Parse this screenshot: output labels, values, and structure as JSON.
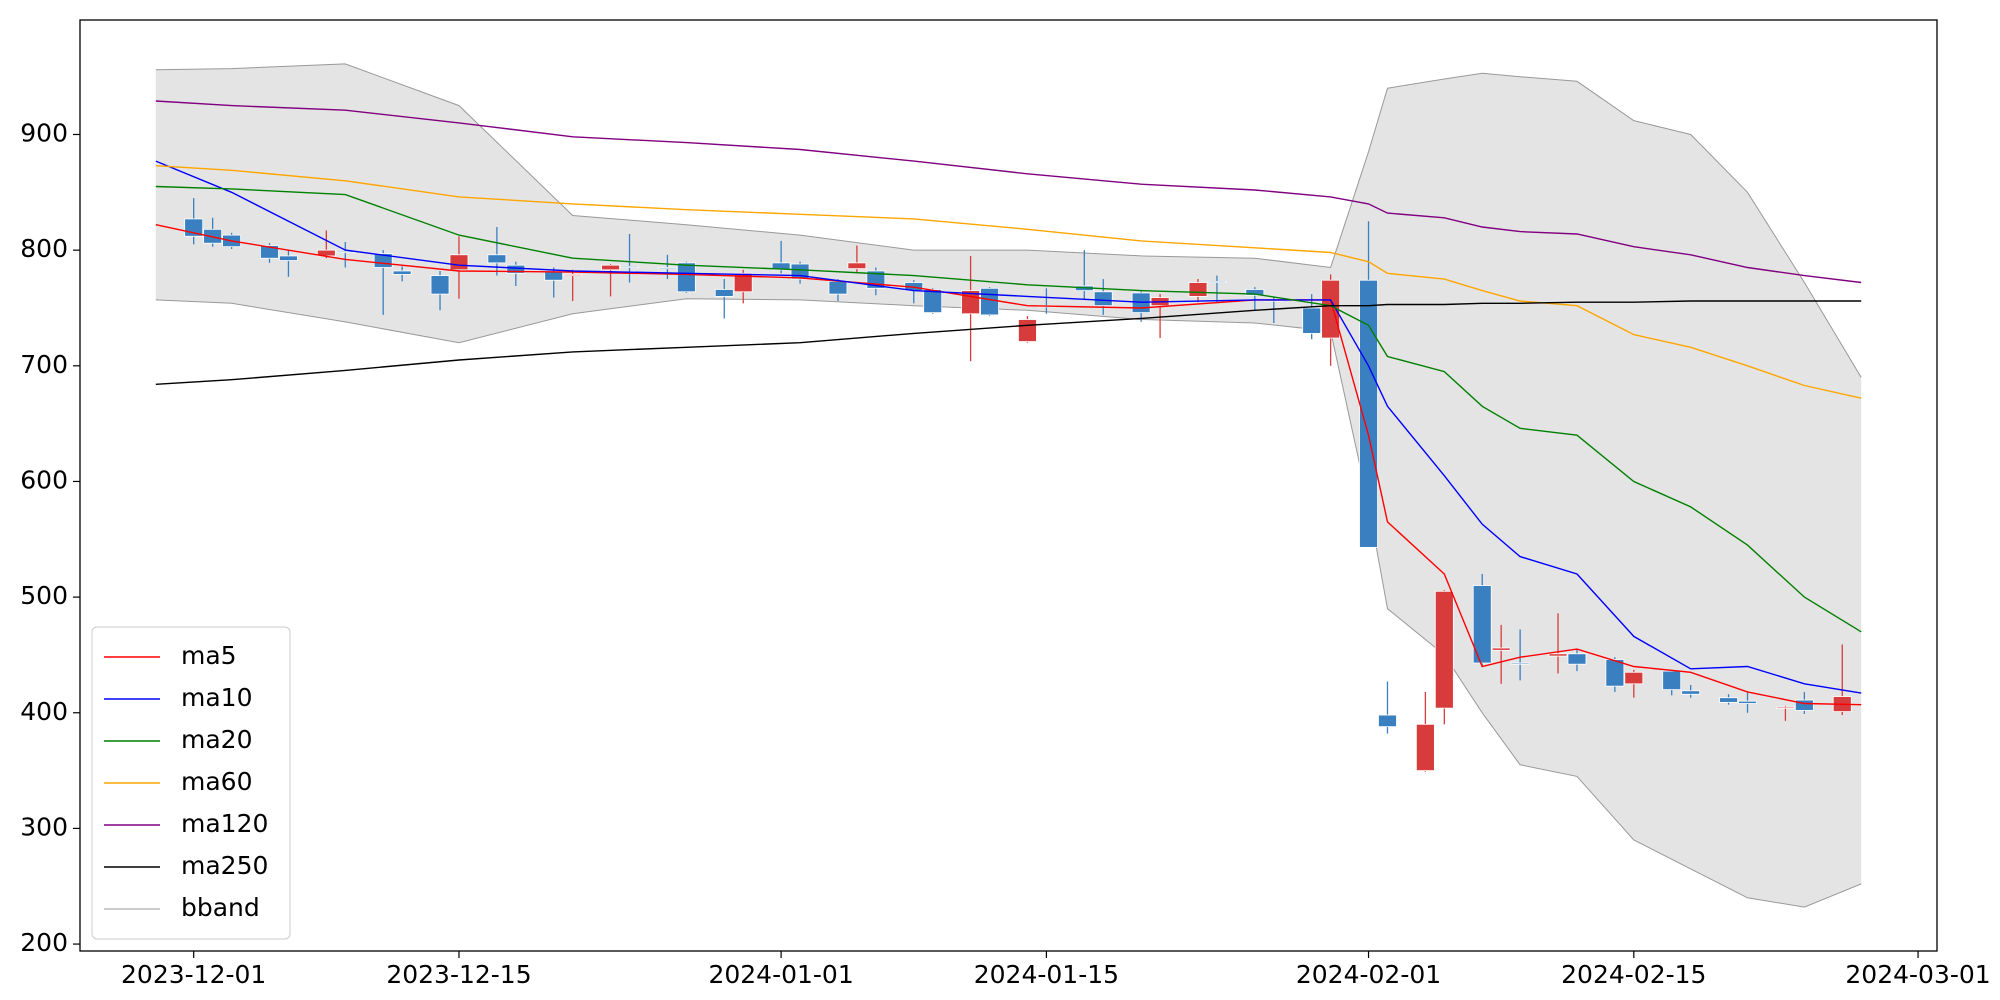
{
  "chart_data": {
    "type": "candlestick",
    "x": [
      "2023-12-01",
      "2023-12-02",
      "2023-12-03",
      "2023-12-05",
      "2023-12-06",
      "2023-12-08",
      "2023-12-09",
      "2023-12-11",
      "2023-12-12",
      "2023-12-14",
      "2023-12-15",
      "2023-12-17",
      "2023-12-18",
      "2023-12-20",
      "2023-12-21",
      "2023-12-23",
      "2023-12-24",
      "2023-12-26",
      "2023-12-27",
      "2023-12-29",
      "2023-12-30",
      "2024-01-01",
      "2024-01-02",
      "2024-01-04",
      "2024-01-05",
      "2024-01-06",
      "2024-01-08",
      "2024-01-09",
      "2024-01-11",
      "2024-01-12",
      "2024-01-14",
      "2024-01-15",
      "2024-01-17",
      "2024-01-18",
      "2024-01-20",
      "2024-01-21",
      "2024-01-23",
      "2024-01-24",
      "2024-01-26",
      "2024-01-27",
      "2024-01-29",
      "2024-01-30",
      "2024-02-01",
      "2024-02-02",
      "2024-02-04",
      "2024-02-05",
      "2024-02-07",
      "2024-02-08",
      "2024-02-09",
      "2024-02-11",
      "2024-02-12",
      "2024-02-14",
      "2024-02-15",
      "2024-02-17",
      "2024-02-18",
      "2024-02-20",
      "2024-02-21",
      "2024-02-23",
      "2024-02-24",
      "2024-02-26"
    ],
    "open": [
      827,
      818,
      813,
      804,
      795,
      795,
      799,
      797,
      782,
      778,
      783,
      796,
      787,
      781,
      778,
      783,
      786,
      785,
      789,
      766,
      764,
      789,
      788,
      773,
      784,
      782,
      772,
      766,
      745,
      767,
      721,
      752,
      769,
      764,
      763,
      752,
      760,
      773,
      766,
      757,
      750,
      724,
      774,
      398,
      350,
      404,
      510,
      454,
      443,
      449,
      451,
      446,
      425,
      436,
      419,
      413,
      410,
      404,
      411,
      401
    ],
    "high": [
      845,
      828,
      815,
      806,
      800,
      817,
      807,
      800,
      786,
      782,
      812,
      820,
      790,
      785,
      783,
      788,
      814,
      796,
      790,
      775,
      783,
      808,
      790,
      775,
      804,
      785,
      774,
      767,
      795,
      768,
      743,
      767,
      800,
      775,
      765,
      762,
      775,
      778,
      768,
      759,
      762,
      779,
      825,
      427,
      418,
      506,
      520,
      476,
      472,
      486,
      455,
      448,
      437,
      437,
      424,
      416,
      418,
      406,
      418,
      459
    ],
    "low": [
      805,
      803,
      801,
      789,
      777,
      793,
      785,
      744,
      773,
      748,
      758,
      778,
      769,
      759,
      756,
      760,
      772,
      775,
      763,
      741,
      754,
      780,
      771,
      756,
      780,
      761,
      754,
      745,
      704,
      743,
      720,
      745,
      757,
      744,
      738,
      724,
      755,
      755,
      748,
      737,
      723,
      700,
      543,
      382,
      349,
      390,
      440,
      425,
      428,
      434,
      436,
      418,
      413,
      415,
      413,
      407,
      400,
      393,
      399,
      398
    ],
    "close": [
      812,
      806,
      803,
      793,
      791,
      800,
      798,
      785,
      779,
      762,
      796,
      789,
      780,
      774,
      779,
      787,
      785,
      784,
      764,
      760,
      780,
      783,
      775,
      762,
      789,
      767,
      765,
      746,
      765,
      744,
      740,
      751,
      765,
      752,
      746,
      759,
      772,
      772,
      761,
      756,
      728,
      774,
      543,
      388,
      390,
      505,
      443,
      456,
      442,
      451,
      442,
      423,
      435,
      420,
      416,
      409,
      408,
      405,
      402,
      414
    ],
    "up_color": "#d83b3b",
    "down_color": "#3a80c0",
    "series": [
      {
        "name": "ma5",
        "color": "#ff0000",
        "x": [
          "2023-11-29",
          "2023-12-03",
          "2023-12-09",
          "2023-12-15",
          "2023-12-21",
          "2023-12-27",
          "2024-01-02",
          "2024-01-08",
          "2024-01-14",
          "2024-01-20",
          "2024-01-26",
          "2024-01-30",
          "2024-02-01",
          "2024-02-02",
          "2024-02-05",
          "2024-02-07",
          "2024-02-09",
          "2024-02-12",
          "2024-02-15",
          "2024-02-18",
          "2024-02-21",
          "2024-02-24",
          "2024-02-27"
        ],
        "values": [
          822,
          808,
          792,
          782,
          781,
          779,
          776,
          768,
          752,
          750,
          757,
          757,
          640,
          565,
          520,
          440,
          448,
          455,
          440,
          435,
          418,
          408,
          407
        ]
      },
      {
        "name": "ma10",
        "color": "#0000ff",
        "x": [
          "2023-11-29",
          "2023-12-03",
          "2023-12-09",
          "2023-12-15",
          "2023-12-21",
          "2023-12-27",
          "2024-01-02",
          "2024-01-08",
          "2024-01-14",
          "2024-01-20",
          "2024-01-26",
          "2024-01-30",
          "2024-02-01",
          "2024-02-02",
          "2024-02-05",
          "2024-02-07",
          "2024-02-09",
          "2024-02-12",
          "2024-02-15",
          "2024-02-18",
          "2024-02-21",
          "2024-02-24",
          "2024-02-27"
        ],
        "values": [
          877,
          850,
          800,
          787,
          782,
          780,
          778,
          765,
          760,
          755,
          757,
          757,
          700,
          665,
          605,
          563,
          535,
          520,
          466,
          438,
          440,
          425,
          417
        ]
      },
      {
        "name": "ma20",
        "color": "#008000",
        "x": [
          "2023-11-29",
          "2023-12-03",
          "2023-12-09",
          "2023-12-15",
          "2023-12-21",
          "2023-12-27",
          "2024-01-02",
          "2024-01-08",
          "2024-01-14",
          "2024-01-20",
          "2024-01-26",
          "2024-01-30",
          "2024-02-01",
          "2024-02-02",
          "2024-02-05",
          "2024-02-07",
          "2024-02-09",
          "2024-02-12",
          "2024-02-15",
          "2024-02-18",
          "2024-02-21",
          "2024-02-24",
          "2024-02-27"
        ],
        "values": [
          855,
          853,
          848,
          813,
          793,
          787,
          783,
          778,
          770,
          765,
          762,
          752,
          735,
          708,
          695,
          665,
          646,
          640,
          600,
          578,
          545,
          500,
          470
        ]
      },
      {
        "name": "ma60",
        "color": "#ffa500",
        "x": [
          "2023-11-29",
          "2023-12-03",
          "2023-12-09",
          "2023-12-15",
          "2023-12-21",
          "2023-12-27",
          "2024-01-02",
          "2024-01-08",
          "2024-01-14",
          "2024-01-20",
          "2024-01-26",
          "2024-01-30",
          "2024-02-01",
          "2024-02-02",
          "2024-02-05",
          "2024-02-07",
          "2024-02-09",
          "2024-02-12",
          "2024-02-15",
          "2024-02-18",
          "2024-02-21",
          "2024-02-24",
          "2024-02-27"
        ],
        "values": [
          873,
          869,
          860,
          846,
          840,
          835,
          831,
          827,
          818,
          808,
          802,
          798,
          790,
          780,
          775,
          765,
          756,
          752,
          727,
          716,
          700,
          683,
          672
        ]
      },
      {
        "name": "ma120",
        "color": "#800080",
        "x": [
          "2023-11-29",
          "2023-12-03",
          "2023-12-09",
          "2023-12-15",
          "2023-12-21",
          "2023-12-27",
          "2024-01-02",
          "2024-01-08",
          "2024-01-14",
          "2024-01-20",
          "2024-01-26",
          "2024-01-30",
          "2024-02-01",
          "2024-02-02",
          "2024-02-05",
          "2024-02-07",
          "2024-02-09",
          "2024-02-12",
          "2024-02-15",
          "2024-02-18",
          "2024-02-21",
          "2024-02-24",
          "2024-02-27"
        ],
        "values": [
          929,
          925,
          921,
          910,
          898,
          893,
          887,
          877,
          866,
          857,
          852,
          846,
          840,
          832,
          828,
          820,
          816,
          814,
          803,
          796,
          785,
          778,
          772
        ]
      },
      {
        "name": "ma250",
        "color": "#000000",
        "x": [
          "2023-11-29",
          "2023-12-03",
          "2023-12-09",
          "2023-12-15",
          "2023-12-21",
          "2023-12-27",
          "2024-01-02",
          "2024-01-08",
          "2024-01-14",
          "2024-01-20",
          "2024-01-26",
          "2024-01-30",
          "2024-02-01",
          "2024-02-02",
          "2024-02-05",
          "2024-02-07",
          "2024-02-09",
          "2024-02-12",
          "2024-02-15",
          "2024-02-18",
          "2024-02-21",
          "2024-02-24",
          "2024-02-27"
        ],
        "values": [
          684,
          688,
          696,
          705,
          712,
          716,
          720,
          728,
          735,
          741,
          748,
          752,
          752,
          753,
          753,
          754,
          754,
          755,
          755,
          756,
          756,
          756,
          756
        ]
      },
      {
        "name": "bband",
        "color": "#999999",
        "fill": "#e4e4e4",
        "x": [
          "2023-11-29",
          "2023-12-03",
          "2023-12-09",
          "2023-12-15",
          "2023-12-21",
          "2023-12-27",
          "2024-01-02",
          "2024-01-08",
          "2024-01-14",
          "2024-01-20",
          "2024-01-26",
          "2024-01-30",
          "2024-02-01",
          "2024-02-02",
          "2024-02-05",
          "2024-02-07",
          "2024-02-09",
          "2024-02-12",
          "2024-02-15",
          "2024-02-18",
          "2024-02-21",
          "2024-02-24",
          "2024-02-27"
        ],
        "upper": [
          956,
          957,
          961,
          925,
          830,
          822,
          813,
          800,
          800,
          795,
          793,
          785,
          885,
          940,
          948,
          953,
          950,
          946,
          912,
          900,
          850,
          772,
          690
        ],
        "lower": [
          757,
          754,
          738,
          720,
          745,
          758,
          757,
          752,
          748,
          740,
          737,
          730,
          580,
          490,
          450,
          400,
          355,
          345,
          290,
          265,
          240,
          232,
          252
        ]
      }
    ],
    "xlim": [
      "2023-11-25",
      "2024-03-02"
    ],
    "xticks": [
      "2023-12-01",
      "2023-12-15",
      "2024-01-01",
      "2024-01-15",
      "2024-02-01",
      "2024-02-15",
      "2024-03-01"
    ],
    "ylim": [
      194,
      999
    ],
    "yticks": [
      200,
      300,
      400,
      500,
      600,
      700,
      800,
      900
    ],
    "legend": "lower left"
  }
}
